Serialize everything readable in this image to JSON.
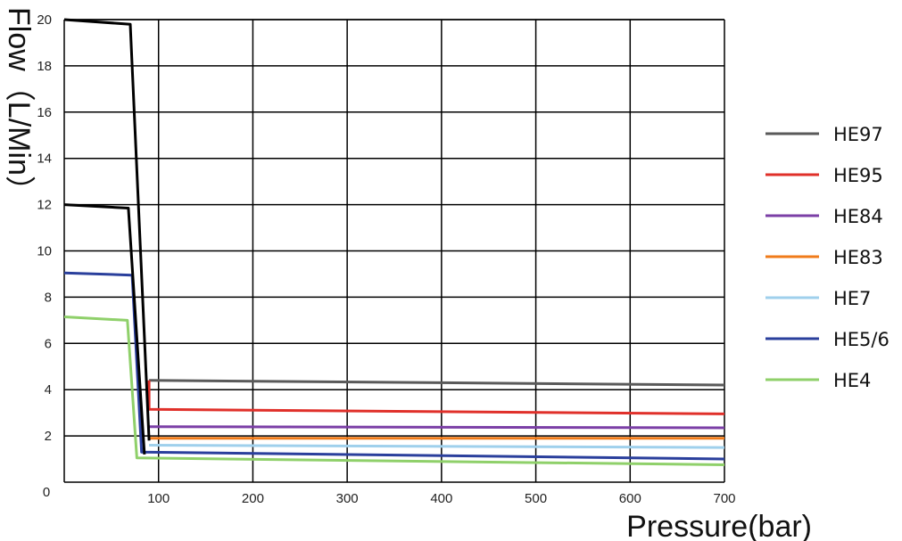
{
  "chart_data": {
    "type": "line",
    "title": "",
    "xlabel": "Pressure(bar)",
    "ylabel": "Flow（L/Min）",
    "xlim": [
      0,
      700
    ],
    "ylim": [
      0,
      20
    ],
    "grid": true,
    "legend_position": "right",
    "x_ticks": [
      {
        "value": 0,
        "label": "0"
      },
      {
        "value": 100,
        "label": "100"
      },
      {
        "value": 200,
        "label": "200"
      },
      {
        "value": 300,
        "label": "300"
      },
      {
        "value": 400,
        "label": "400"
      },
      {
        "value": 500,
        "label": "500"
      },
      {
        "value": 600,
        "label": "600"
      },
      {
        "value": 700,
        "label": "700"
      }
    ],
    "y_ticks": [
      {
        "value": 2,
        "label": "2"
      },
      {
        "value": 4,
        "label": "4"
      },
      {
        "value": 6,
        "label": "6"
      },
      {
        "value": 8,
        "label": "8"
      },
      {
        "value": 10,
        "label": "10"
      },
      {
        "value": 12,
        "label": "12"
      },
      {
        "value": 14,
        "label": "14"
      },
      {
        "value": 16,
        "label": "16"
      },
      {
        "value": 18,
        "label": "18"
      },
      {
        "value": 20,
        "label": "20"
      }
    ],
    "series": [
      {
        "name": "HE97",
        "color": "#5a5a5a",
        "legend": true,
        "points": [
          [
            90,
            4.4
          ],
          [
            700,
            4.2
          ]
        ]
      },
      {
        "name": "HE95",
        "color": "#e0302a",
        "legend": true,
        "points": [
          [
            90,
            4.4
          ],
          [
            90,
            3.15
          ],
          [
            700,
            2.95
          ]
        ]
      },
      {
        "name": "HE84",
        "color": "#7b3fa6",
        "legend": true,
        "points": [
          [
            90,
            2.4
          ],
          [
            700,
            2.35
          ]
        ]
      },
      {
        "name": "HE83",
        "color": "#f07b1a",
        "legend": true,
        "points": [
          [
            90,
            1.9
          ],
          [
            700,
            1.9
          ]
        ]
      },
      {
        "name": "HE7",
        "color": "#9fd0ec",
        "legend": true,
        "points": [
          [
            90,
            1.6
          ],
          [
            700,
            1.5
          ]
        ]
      },
      {
        "name": "HE5/6",
        "color": "#2a3f9c",
        "legend": true,
        "points": [
          [
            0,
            9.05
          ],
          [
            72,
            8.95
          ],
          [
            82,
            1.3
          ],
          [
            700,
            1.0
          ]
        ]
      },
      {
        "name": "HE4",
        "color": "#8fd06a",
        "legend": true,
        "points": [
          [
            0,
            7.15
          ],
          [
            67,
            7.0
          ],
          [
            77,
            1.05
          ],
          [
            700,
            0.75
          ]
        ]
      },
      {
        "name": "",
        "color": "#000000",
        "legend": false,
        "points": [
          [
            0,
            20.0
          ],
          [
            70,
            19.8
          ],
          [
            90,
            1.8
          ]
        ]
      },
      {
        "name": "",
        "color": "#000000",
        "legend": false,
        "points": [
          [
            0,
            12.0
          ],
          [
            68,
            11.85
          ],
          [
            85,
            1.2
          ]
        ]
      }
    ]
  }
}
